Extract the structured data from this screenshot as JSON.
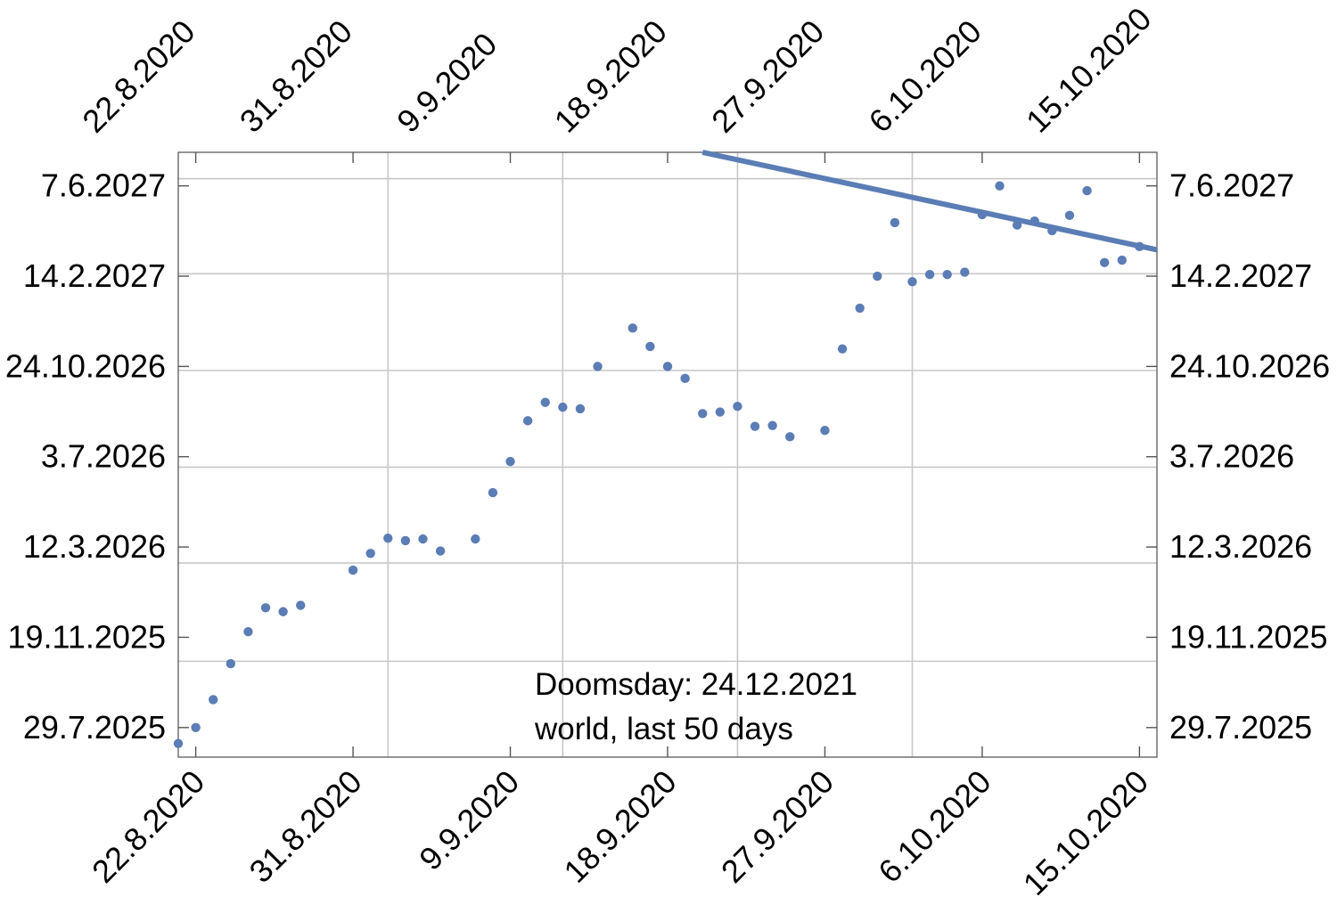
{
  "chart_data": {
    "type": "scatter",
    "title": "",
    "xlabel": "",
    "ylabel": "",
    "x_axis_type": "date",
    "y_axis_type": "date",
    "xlim": [
      "2020-08-21",
      "2020-10-16"
    ],
    "ylim": [
      "2025-06-22",
      "2027-07-19"
    ],
    "x_ticks": [
      {
        "date": "2020-08-22",
        "label": "22.8.2020"
      },
      {
        "date": "2020-08-31",
        "label": "31.8.2020"
      },
      {
        "date": "2020-09-09",
        "label": "9.9.2020"
      },
      {
        "date": "2020-09-18",
        "label": "18.9.2020"
      },
      {
        "date": "2020-09-27",
        "label": "27.9.2020"
      },
      {
        "date": "2020-10-06",
        "label": "6.10.2020"
      },
      {
        "date": "2020-10-15",
        "label": "15.10.2020"
      }
    ],
    "y_ticks": [
      {
        "date": "2025-07-29",
        "label": "29.7.2025"
      },
      {
        "date": "2025-11-19",
        "label": "19.11.2025"
      },
      {
        "date": "2026-03-12",
        "label": "12.3.2026"
      },
      {
        "date": "2026-07-03",
        "label": "3.7.2026"
      },
      {
        "date": "2026-10-24",
        "label": "24.10.2026"
      },
      {
        "date": "2027-02-14",
        "label": "14.2.2027"
      },
      {
        "date": "2027-06-07",
        "label": "7.6.2027"
      }
    ],
    "grid": true,
    "series": [
      {
        "type": "scatter",
        "color": "#5b7db5",
        "points": [
          {
            "x": "2020-08-21",
            "y": "2025-07-09"
          },
          {
            "x": "2020-08-22",
            "y": "2025-07-29"
          },
          {
            "x": "2020-08-23",
            "y": "2025-09-02"
          },
          {
            "x": "2020-08-24",
            "y": "2025-10-17"
          },
          {
            "x": "2020-08-25",
            "y": "2025-11-26"
          },
          {
            "x": "2020-08-26",
            "y": "2025-12-26"
          },
          {
            "x": "2020-08-27",
            "y": "2025-12-21"
          },
          {
            "x": "2020-08-28",
            "y": "2025-12-29"
          },
          {
            "x": "2020-08-31",
            "y": "2026-02-11"
          },
          {
            "x": "2020-09-01",
            "y": "2026-03-04"
          },
          {
            "x": "2020-09-02",
            "y": "2026-03-23"
          },
          {
            "x": "2020-09-03",
            "y": "2026-03-20"
          },
          {
            "x": "2020-09-04",
            "y": "2026-03-22"
          },
          {
            "x": "2020-09-05",
            "y": "2026-03-07"
          },
          {
            "x": "2020-09-07",
            "y": "2026-03-22"
          },
          {
            "x": "2020-09-08",
            "y": "2026-05-19"
          },
          {
            "x": "2020-09-09",
            "y": "2026-06-27"
          },
          {
            "x": "2020-09-10",
            "y": "2026-08-17"
          },
          {
            "x": "2020-09-11",
            "y": "2026-09-09"
          },
          {
            "x": "2020-09-12",
            "y": "2026-09-03"
          },
          {
            "x": "2020-09-13",
            "y": "2026-09-01"
          },
          {
            "x": "2020-09-14",
            "y": "2026-10-24"
          },
          {
            "x": "2020-09-16",
            "y": "2026-12-11"
          },
          {
            "x": "2020-09-17",
            "y": "2026-11-18"
          },
          {
            "x": "2020-09-18",
            "y": "2026-10-24"
          },
          {
            "x": "2020-09-19",
            "y": "2026-10-09"
          },
          {
            "x": "2020-09-20",
            "y": "2026-08-26"
          },
          {
            "x": "2020-09-21",
            "y": "2026-08-28"
          },
          {
            "x": "2020-09-22",
            "y": "2026-09-04"
          },
          {
            "x": "2020-09-23",
            "y": "2026-08-10"
          },
          {
            "x": "2020-09-24",
            "y": "2026-08-11"
          },
          {
            "x": "2020-09-25",
            "y": "2026-07-28"
          },
          {
            "x": "2020-09-27",
            "y": "2026-08-05"
          },
          {
            "x": "2020-09-28",
            "y": "2026-11-15"
          },
          {
            "x": "2020-09-29",
            "y": "2027-01-05"
          },
          {
            "x": "2020-09-30",
            "y": "2027-02-14"
          },
          {
            "x": "2020-10-01",
            "y": "2027-04-22"
          },
          {
            "x": "2020-10-02",
            "y": "2027-02-07"
          },
          {
            "x": "2020-10-03",
            "y": "2027-02-16"
          },
          {
            "x": "2020-10-04",
            "y": "2027-02-16"
          },
          {
            "x": "2020-10-05",
            "y": "2027-02-19"
          },
          {
            "x": "2020-10-06",
            "y": "2027-05-02"
          },
          {
            "x": "2020-10-07",
            "y": "2027-06-07"
          },
          {
            "x": "2020-10-08",
            "y": "2027-04-19"
          },
          {
            "x": "2020-10-09",
            "y": "2027-04-24"
          },
          {
            "x": "2020-10-10",
            "y": "2027-04-12"
          },
          {
            "x": "2020-10-11",
            "y": "2027-05-01"
          },
          {
            "x": "2020-10-12",
            "y": "2027-06-01"
          },
          {
            "x": "2020-10-13",
            "y": "2027-03-03"
          },
          {
            "x": "2020-10-14",
            "y": "2027-03-06"
          },
          {
            "x": "2020-10-15",
            "y": "2027-03-23"
          }
        ]
      },
      {
        "type": "line",
        "color": "#5b7db5",
        "points": [
          {
            "x": "2020-09-20",
            "y": "2027-07-19"
          },
          {
            "x": "2020-10-16",
            "y": "2027-03-19"
          }
        ]
      }
    ],
    "annotations": [
      "Doomsday: 24.12.2021",
      "world, last 50 days"
    ]
  }
}
